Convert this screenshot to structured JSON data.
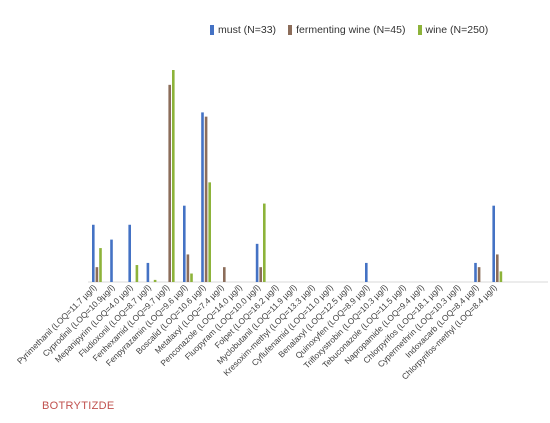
{
  "chart_data": {
    "type": "bar",
    "title": "",
    "xlabel": "",
    "ylabel": "",
    "ylim": [
      0,
      100
    ],
    "grid": false,
    "legend_position": "top-right",
    "categories": [
      "Pyrimethanil (LOQ=11.7 µg/l)",
      "Cyprodinil (LOQ=10.9µg/l)",
      "Mepanipyrim (LOQ=4.0 µg/l)",
      "Fludioxonil (LOQ=8.7 µg/l)",
      "Fenhexamid (LOQ=9.7 µg/l)",
      "Fenpyrazamin (LOQ=9.6 µg/l)",
      "Boscalid (LOQ=10.6 µg/l)",
      "Metalaxyl (LOQ=7.4 µg/l)",
      "Penconazole (LOQ=14.0 µg/l)",
      "Fluopyram (LOQ=10.0 µg/l)",
      "Folpet (LOQ=16.2 µg/l)",
      "Myclobutanil (LOQ=11.9 µg/l)",
      "Kresoxim-methyl (LOQ=13.3 µg/l)",
      "Cyflufenamid (LOQ=11.0 µg/l)",
      "Benalaxyl (LOQ=12.5 µg/l)",
      "Quinoxyfen (LOQ=8.9 µg/l)",
      "Trifloxystrobin (LOQ=10.3 µg/l)",
      "Tebuconazole (LOQ=11.5 µg/l)",
      "Napropamide (LOQ=9.4 µg/l)",
      "Chlorpyrifos (LOQ=18.1 µg/l)",
      "Cypermethrin (LOQ=10.3 µg/l)",
      "Indoxacarb (LOQ=8.4 µg/l)",
      "Chlorpyrifos-methyl (LOQ=8.4 µg/l)"
    ],
    "series": [
      {
        "name": "must (N=33)",
        "color": "#4472c4",
        "values": [
          27,
          20,
          27,
          9,
          0,
          36,
          80,
          0,
          0,
          18,
          0,
          0,
          0,
          0,
          0,
          9,
          0,
          0,
          0,
          0,
          0,
          9,
          36
        ]
      },
      {
        "name": "fermenting wine (N=45)",
        "color": "#8c6d5a",
        "values": [
          7,
          0,
          0,
          0,
          93,
          13,
          78,
          7,
          0,
          7,
          0,
          0,
          0,
          0,
          0,
          0,
          0,
          0,
          0,
          0,
          0,
          7,
          13
        ]
      },
      {
        "name": "wine (N=250)",
        "color": "#8db33a",
        "values": [
          16,
          0,
          8,
          1,
          100,
          4,
          47,
          0,
          0,
          37,
          0,
          0,
          0,
          0,
          0,
          0,
          0,
          0,
          0,
          0,
          0,
          0,
          5
        ]
      }
    ]
  },
  "footnote": "BOTRYTIZDE"
}
